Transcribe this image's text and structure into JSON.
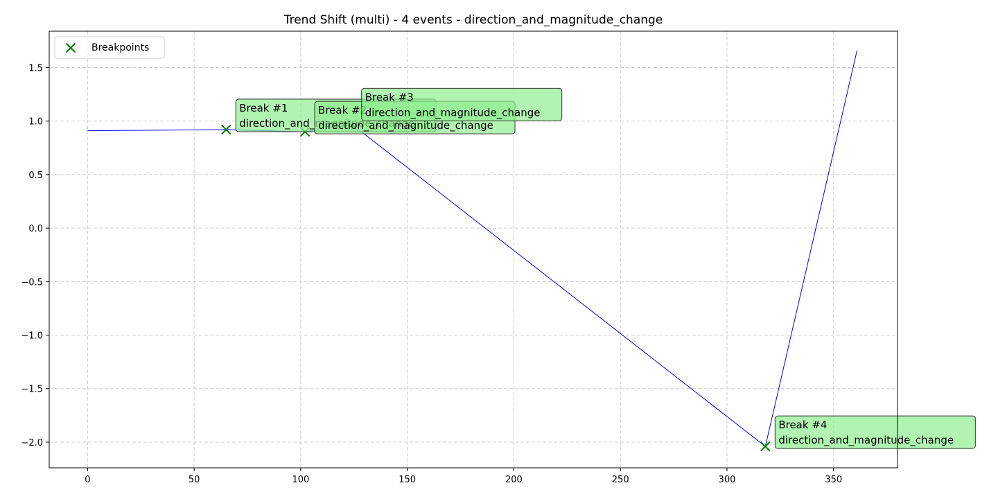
{
  "chart_data": {
    "type": "line",
    "title": "Trend Shift (multi) - 4 events - direction_and_magnitude_change",
    "xlabel": "",
    "ylabel": "",
    "xlim": [
      -18,
      380
    ],
    "ylim": [
      -2.24,
      1.84
    ],
    "xticks": [
      0,
      50,
      100,
      150,
      200,
      250,
      300,
      350
    ],
    "xtick_labels": [
      "0",
      "50",
      "100",
      "150",
      "200",
      "250",
      "300",
      "350"
    ],
    "yticks": [
      1.5,
      1.0,
      0.5,
      0.0,
      -0.5,
      -1.0,
      -1.5,
      -2.0
    ],
    "ytick_labels": [
      "1.5",
      "1.0",
      "0.5",
      "0.0",
      "−0.5",
      "−1.0",
      "−1.5",
      "−2.0"
    ],
    "grid": true,
    "legend_position": "top-left",
    "legend_label": "Breakpoints",
    "series": [
      {
        "color": "#0000ff",
        "x": [
          0,
          65,
          102,
          124,
          318,
          361
        ],
        "y": [
          0.91,
          0.92,
          0.9,
          0.97,
          -2.04,
          1.66
        ]
      }
    ],
    "breakpoints": [
      {
        "x": 65,
        "y": 0.92,
        "label_line1": "Break #1",
        "label_line2": "direction_and_magnitude_change"
      },
      {
        "x": 102,
        "y": 0.9,
        "label_line1": "Break #2",
        "label_line2": "direction_and_magnitude_change"
      },
      {
        "x": 124,
        "y": 0.97,
        "label_line1": "Break #3",
        "label_line2": "direction_and_magnitude_change"
      },
      {
        "x": 318,
        "y": -2.04,
        "label_line1": "Break #4",
        "label_line2": "direction_and_magnitude_change"
      }
    ],
    "colors": {
      "line": "#0000ff",
      "marker": "#008000",
      "annotation_fill": "#90ee90",
      "grid": "#cccccc"
    }
  }
}
